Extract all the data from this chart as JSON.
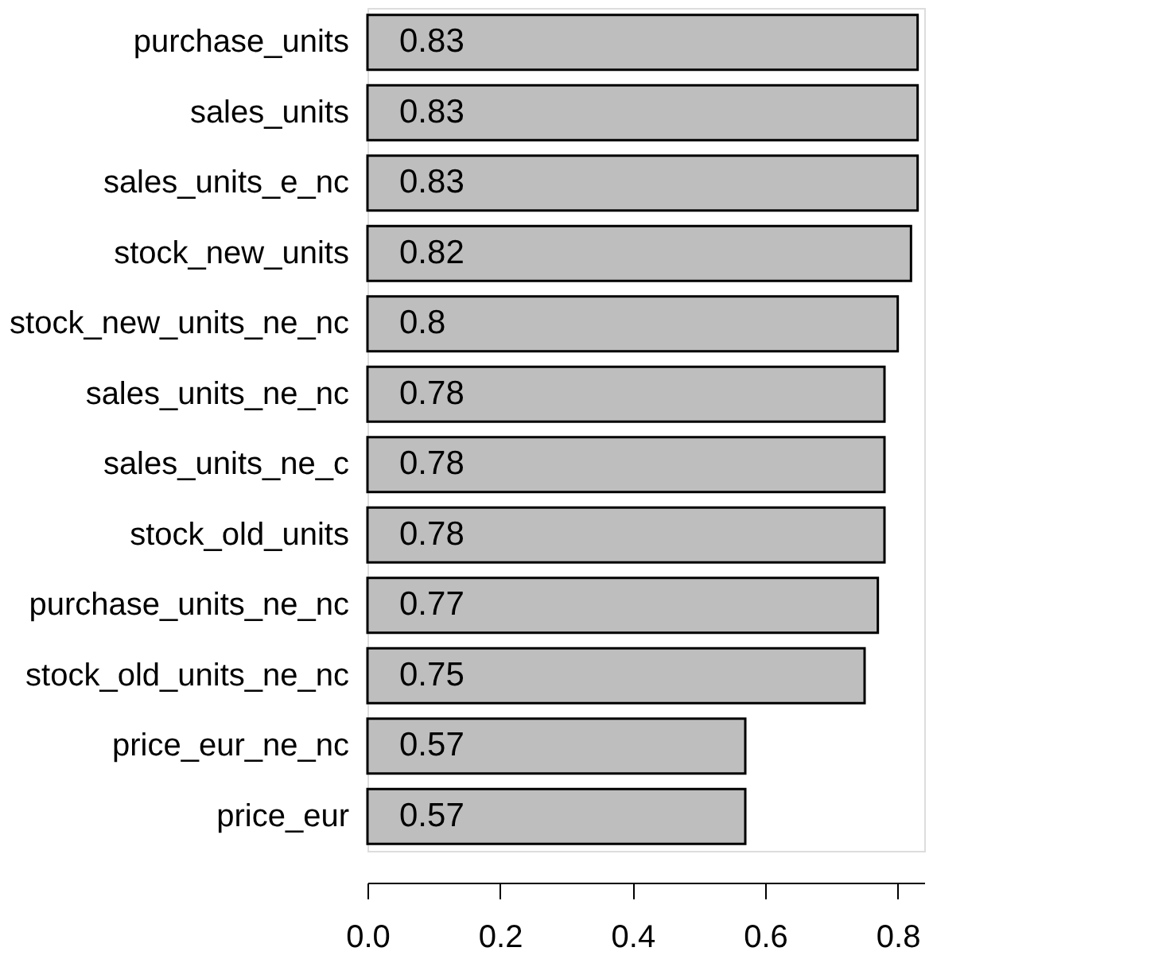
{
  "chart_data": {
    "type": "bar",
    "orientation": "horizontal",
    "categories": [
      "purchase_units",
      "sales_units",
      "sales_units_e_nc",
      "stock_new_units",
      "stock_new_units_ne_nc",
      "sales_units_ne_nc",
      "sales_units_ne_c",
      "stock_old_units",
      "purchase_units_ne_nc",
      "stock_old_units_ne_nc",
      "price_eur_ne_nc",
      "price_eur"
    ],
    "values": [
      0.83,
      0.83,
      0.83,
      0.82,
      0.8,
      0.78,
      0.78,
      0.78,
      0.77,
      0.75,
      0.57,
      0.57
    ],
    "color": "#bebebe",
    "xlim": [
      0,
      0.84
    ],
    "xticks": [
      {
        "value": 0,
        "label": "0.0"
      },
      0.2,
      0.4,
      0.6,
      0.8
    ],
    "data_labels": true,
    "grid": false
  }
}
